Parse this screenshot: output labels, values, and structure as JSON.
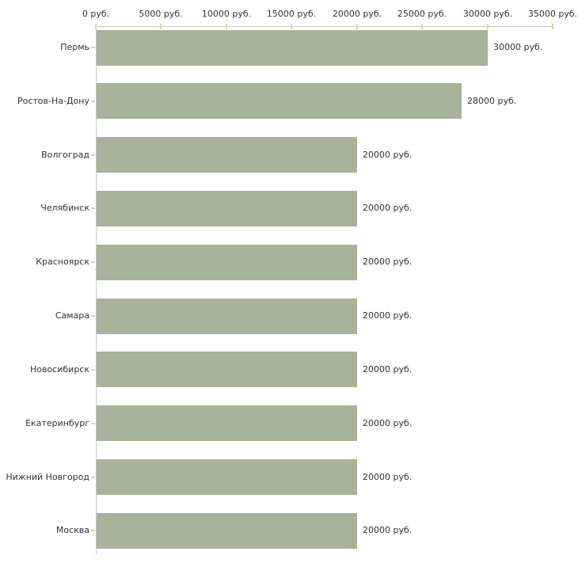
{
  "chart_data": {
    "type": "bar",
    "orientation": "horizontal",
    "title": "",
    "categories": [
      "Пермь",
      "Ростов-На-Дону",
      "Волгоград",
      "Челябинск",
      "Красноярск",
      "Самара",
      "Новосибирск",
      "Екатеринбург",
      "Нижний Новгород",
      "Москва"
    ],
    "values": [
      30000,
      28000,
      20000,
      20000,
      20000,
      20000,
      20000,
      20000,
      20000,
      20000
    ],
    "value_labels": [
      "30000 руб.",
      "28000 руб.",
      "20000 руб.",
      "20000 руб.",
      "20000 руб.",
      "20000 руб.",
      "20000 руб.",
      "20000 руб.",
      "20000 руб.",
      "20000 руб."
    ],
    "x_axis": {
      "position": "top",
      "tick_labels": [
        "0 руб.",
        "5000 руб.",
        "10000 руб.",
        "15000 руб.",
        "20000 руб.",
        "25000 руб.",
        "30000 руб.",
        "35000 руб."
      ],
      "tick_values": [
        0,
        5000,
        10000,
        15000,
        20000,
        25000,
        30000,
        35000
      ],
      "range": [
        0,
        35000
      ]
    },
    "unit": "руб.",
    "legend": "none",
    "grid": "off",
    "colors": {
      "bar": "#abb29b",
      "axis_line": "#c8c8c8",
      "tick_mark": "#d6d7ae",
      "text": "#333333",
      "background": "#ffffff"
    }
  }
}
